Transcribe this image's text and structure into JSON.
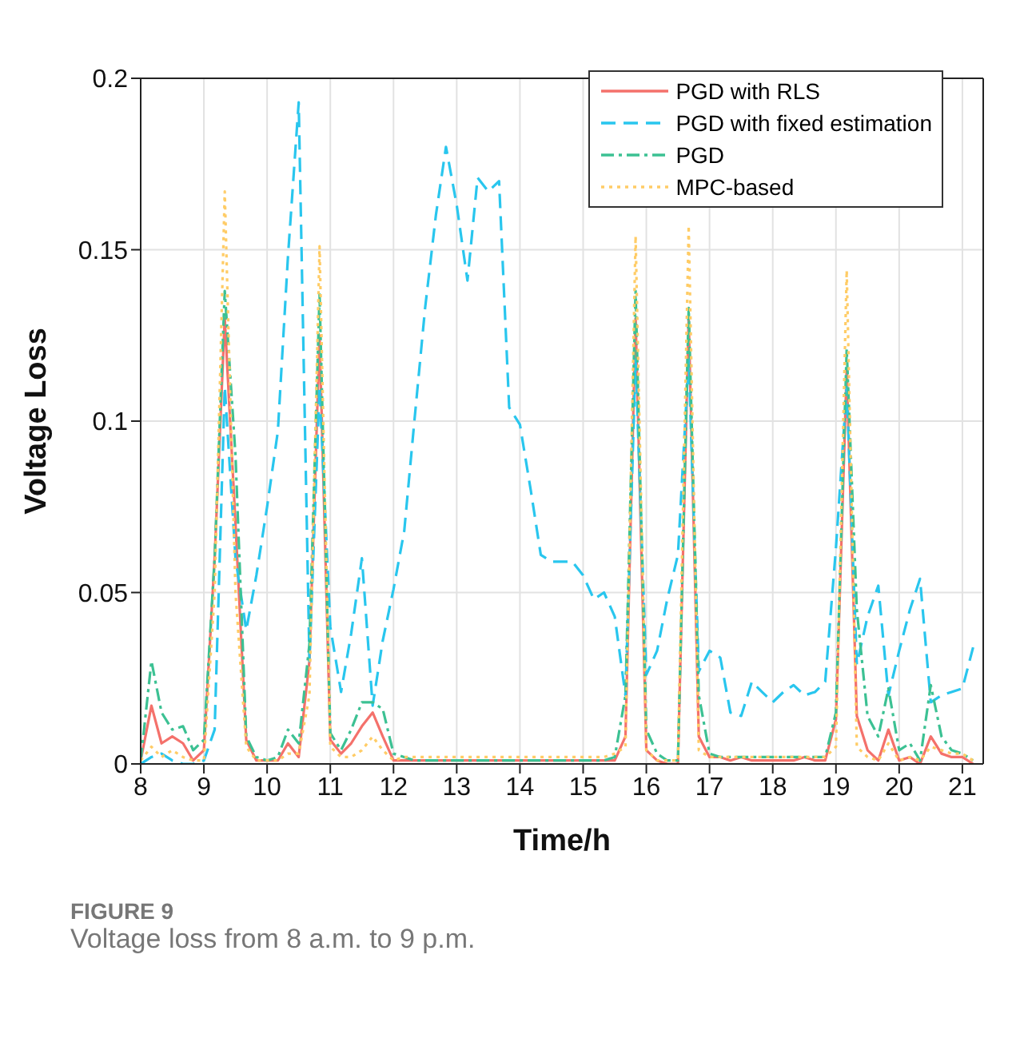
{
  "chart_data": {
    "type": "line",
    "xlabel": "Time/h",
    "ylabel": "Voltage Loss",
    "annotations": [
      "FIGURE 9",
      "Voltage loss from 8 a.m. to 9 p.m."
    ],
    "x": [
      8,
      8.17,
      8.33,
      8.5,
      8.67,
      8.83,
      9,
      9.17,
      9.33,
      9.5,
      9.67,
      9.83,
      10,
      10.17,
      10.33,
      10.5,
      10.67,
      10.83,
      11,
      11.17,
      11.33,
      11.5,
      11.67,
      11.83,
      12,
      12.17,
      12.33,
      12.5,
      12.67,
      12.83,
      13,
      13.17,
      13.33,
      13.5,
      13.67,
      13.83,
      14,
      14.17,
      14.33,
      14.5,
      14.67,
      14.83,
      15,
      15.17,
      15.33,
      15.5,
      15.67,
      15.83,
      16,
      16.17,
      16.33,
      16.5,
      16.67,
      16.83,
      17,
      17.17,
      17.33,
      17.5,
      17.67,
      17.83,
      18,
      18.17,
      18.33,
      18.5,
      18.67,
      18.83,
      19,
      19.17,
      19.33,
      19.5,
      19.67,
      19.83,
      20,
      20.17,
      20.33,
      20.5,
      20.67,
      20.83,
      21,
      21.17
    ],
    "series": [
      {
        "name": "PGD with RLS",
        "color": "#f4716b",
        "line_style": "solid",
        "values": [
          0.001,
          0.017,
          0.006,
          0.008,
          0.006,
          0.001,
          0.004,
          0.06,
          0.13,
          0.07,
          0.007,
          0.001,
          0.001,
          0.001,
          0.006,
          0.002,
          0.03,
          0.125,
          0.007,
          0.003,
          0.006,
          0.011,
          0.015,
          0.008,
          0.001,
          0.001,
          0.001,
          0.001,
          0.001,
          0.001,
          0.001,
          0.001,
          0.001,
          0.001,
          0.001,
          0.001,
          0.001,
          0.001,
          0.001,
          0.001,
          0.001,
          0.001,
          0.001,
          0.001,
          0.001,
          0.001,
          0.008,
          0.13,
          0.004,
          0.001,
          0,
          0,
          0.13,
          0.008,
          0.002,
          0.002,
          0.001,
          0.002,
          0.001,
          0.001,
          0.001,
          0.001,
          0.001,
          0.002,
          0.001,
          0.001,
          0.013,
          0.115,
          0.014,
          0.004,
          0.001,
          0.01,
          0.001,
          0.002,
          0,
          0.008,
          0.003,
          0.002,
          0.002,
          0
        ]
      },
      {
        "name": "PGD with fixed estimation",
        "color": "#29c6ee",
        "line_style": "dashed",
        "values": [
          0,
          0.002,
          0.003,
          0.001,
          0,
          0,
          0.001,
          0.01,
          0.11,
          0.06,
          0.039,
          0.055,
          0.075,
          0.097,
          0.148,
          0.193,
          0.03,
          0.11,
          0.04,
          0.021,
          0.038,
          0.06,
          0.017,
          0.036,
          0.051,
          0.068,
          0.1,
          0.133,
          0.16,
          0.18,
          0.163,
          0.141,
          0.171,
          0.167,
          0.17,
          0.104,
          0.099,
          0.08,
          0.061,
          0.059,
          0.059,
          0.059,
          0.055,
          0.048,
          0.05,
          0.043,
          0.02,
          0.118,
          0.026,
          0.033,
          0.048,
          0.061,
          0.118,
          0.027,
          0.033,
          0.031,
          0.015,
          0.014,
          0.024,
          0.021,
          0.018,
          0.021,
          0.023,
          0.02,
          0.021,
          0.024,
          0.063,
          0.11,
          0.029,
          0.043,
          0.052,
          0.02,
          0.033,
          0.045,
          0.054,
          0.018,
          0.02,
          0.021,
          0.022,
          0.034
        ]
      },
      {
        "name": "PGD",
        "color": "#3cc193",
        "line_style": "dashdot",
        "values": [
          0.001,
          0.03,
          0.015,
          0.01,
          0.011,
          0.004,
          0.007,
          0.06,
          0.138,
          0.09,
          0.008,
          0.002,
          0.001,
          0.002,
          0.01,
          0.006,
          0.035,
          0.137,
          0.009,
          0.004,
          0.01,
          0.018,
          0.018,
          0.016,
          0.003,
          0.002,
          0.001,
          0.001,
          0.001,
          0.001,
          0.001,
          0.001,
          0.001,
          0.001,
          0.001,
          0.001,
          0.001,
          0.001,
          0.001,
          0.001,
          0.001,
          0.001,
          0.001,
          0.001,
          0.001,
          0.002,
          0.02,
          0.138,
          0.01,
          0.003,
          0.001,
          0.001,
          0.133,
          0.02,
          0.003,
          0.002,
          0.002,
          0.002,
          0.002,
          0.002,
          0.002,
          0.002,
          0.002,
          0.002,
          0.002,
          0.002,
          0.015,
          0.121,
          0.045,
          0.014,
          0.008,
          0.022,
          0.004,
          0.006,
          0.001,
          0.023,
          0.008,
          0.004,
          0.003,
          0.001
        ]
      },
      {
        "name": "MPC-based",
        "color": "#ffcc66",
        "line_style": "dotted",
        "values": [
          0.001,
          0.005,
          0.002,
          0.004,
          0.002,
          0.001,
          0.001,
          0.05,
          0.167,
          0.05,
          0.005,
          0.001,
          0.001,
          0.001,
          0.003,
          0.003,
          0.02,
          0.151,
          0.005,
          0.002,
          0.002,
          0.004,
          0.008,
          0.004,
          0.001,
          0.002,
          0.002,
          0.002,
          0.002,
          0.002,
          0.002,
          0.002,
          0.002,
          0.002,
          0.002,
          0.002,
          0.002,
          0.002,
          0.002,
          0.002,
          0.002,
          0.002,
          0.002,
          0.002,
          0.002,
          0.003,
          0.005,
          0.154,
          0.004,
          0.001,
          0.001,
          0.001,
          0.157,
          0.004,
          0.002,
          0.002,
          0.002,
          0.002,
          0.002,
          0.002,
          0.002,
          0.002,
          0.002,
          0.002,
          0.002,
          0.002,
          0.005,
          0.144,
          0.005,
          0.002,
          0.001,
          0.006,
          0.001,
          0.002,
          0.001,
          0.005,
          0.004,
          0.003,
          0.003,
          0.001
        ]
      }
    ],
    "xlim": [
      8,
      21.33
    ],
    "xticks": [
      8,
      9,
      10,
      11,
      12,
      13,
      14,
      15,
      16,
      17,
      18,
      19,
      20,
      21
    ],
    "ylim": [
      0,
      0.2
    ],
    "yticks": [
      0,
      0.05,
      0.1,
      0.15,
      0.2
    ],
    "grid": true,
    "legend": "top right",
    "marker": "none"
  }
}
